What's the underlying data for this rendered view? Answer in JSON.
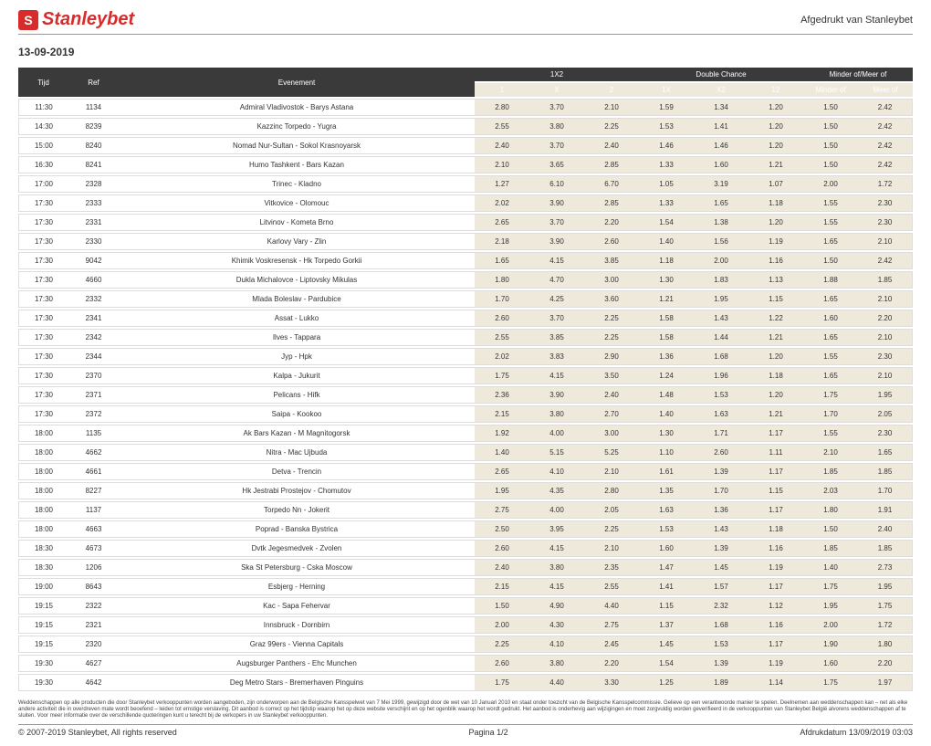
{
  "header": {
    "logo_letter": "S",
    "logo_text": "Stanleybet",
    "print_label": "Afgedrukt van Stanleybet"
  },
  "date": "13-09-2019",
  "table": {
    "headers": {
      "tijd": "Tijd",
      "ref": "Ref",
      "evenement": "Evenement",
      "group_1x2": "1X2",
      "group_dc": "Double Chance",
      "group_mm": "Minder of/Meer of",
      "h1": "1",
      "hx": "X",
      "h2": "2",
      "h1x": "1X",
      "hx2": "X2",
      "h12": "12",
      "hminder": "Minder of",
      "hmeer": "Meer of"
    },
    "rows": [
      {
        "tijd": "11:30",
        "ref": "1134",
        "ev": "Admiral Vladivostok - Barys Astana",
        "o": [
          "2.80",
          "3.70",
          "2.10",
          "1.59",
          "1.34",
          "1.20",
          "1.50",
          "2.42"
        ]
      },
      {
        "tijd": "14:30",
        "ref": "8239",
        "ev": "Kazzinc Torpedo - Yugra",
        "o": [
          "2.55",
          "3.80",
          "2.25",
          "1.53",
          "1.41",
          "1.20",
          "1.50",
          "2.42"
        ]
      },
      {
        "tijd": "15:00",
        "ref": "8240",
        "ev": "Nomad Nur-Sultan - Sokol Krasnoyarsk",
        "o": [
          "2.40",
          "3.70",
          "2.40",
          "1.46",
          "1.46",
          "1.20",
          "1.50",
          "2.42"
        ]
      },
      {
        "tijd": "16:30",
        "ref": "8241",
        "ev": "Humo Tashkent - Bars Kazan",
        "o": [
          "2.10",
          "3.65",
          "2.85",
          "1.33",
          "1.60",
          "1.21",
          "1.50",
          "2.42"
        ]
      },
      {
        "tijd": "17:00",
        "ref": "2328",
        "ev": "Trinec - Kladno",
        "o": [
          "1.27",
          "6.10",
          "6.70",
          "1.05",
          "3.19",
          "1.07",
          "2.00",
          "1.72"
        ]
      },
      {
        "tijd": "17:30",
        "ref": "2333",
        "ev": "Vitkovice - Olomouc",
        "o": [
          "2.02",
          "3.90",
          "2.85",
          "1.33",
          "1.65",
          "1.18",
          "1.55",
          "2.30"
        ]
      },
      {
        "tijd": "17:30",
        "ref": "2331",
        "ev": "Litvinov - Kometa Brno",
        "o": [
          "2.65",
          "3.70",
          "2.20",
          "1.54",
          "1.38",
          "1.20",
          "1.55",
          "2.30"
        ]
      },
      {
        "tijd": "17:30",
        "ref": "2330",
        "ev": "Karlovy Vary - Zlin",
        "o": [
          "2.18",
          "3.90",
          "2.60",
          "1.40",
          "1.56",
          "1.19",
          "1.65",
          "2.10"
        ]
      },
      {
        "tijd": "17:30",
        "ref": "9042",
        "ev": "Khimik Voskresensk - Hk Torpedo Gorkii",
        "o": [
          "1.65",
          "4.15",
          "3.85",
          "1.18",
          "2.00",
          "1.16",
          "1.50",
          "2.42"
        ]
      },
      {
        "tijd": "17:30",
        "ref": "4660",
        "ev": "Dukla Michalovce - Liptovsky Mikulas",
        "o": [
          "1.80",
          "4.70",
          "3.00",
          "1.30",
          "1.83",
          "1.13",
          "1.88",
          "1.85"
        ]
      },
      {
        "tijd": "17:30",
        "ref": "2332",
        "ev": "Mlada Boleslav - Pardubice",
        "o": [
          "1.70",
          "4.25",
          "3.60",
          "1.21",
          "1.95",
          "1.15",
          "1.65",
          "2.10"
        ]
      },
      {
        "tijd": "17:30",
        "ref": "2341",
        "ev": "Assat - Lukko",
        "o": [
          "2.60",
          "3.70",
          "2.25",
          "1.58",
          "1.43",
          "1.22",
          "1.60",
          "2.20"
        ]
      },
      {
        "tijd": "17:30",
        "ref": "2342",
        "ev": "Ilves - Tappara",
        "o": [
          "2.55",
          "3.85",
          "2.25",
          "1.58",
          "1.44",
          "1.21",
          "1.65",
          "2.10"
        ]
      },
      {
        "tijd": "17:30",
        "ref": "2344",
        "ev": "Jyp - Hpk",
        "o": [
          "2.02",
          "3.83",
          "2.90",
          "1.36",
          "1.68",
          "1.20",
          "1.55",
          "2.30"
        ]
      },
      {
        "tijd": "17:30",
        "ref": "2370",
        "ev": "Kalpa - Jukurit",
        "o": [
          "1.75",
          "4.15",
          "3.50",
          "1.24",
          "1.96",
          "1.18",
          "1.65",
          "2.10"
        ]
      },
      {
        "tijd": "17:30",
        "ref": "2371",
        "ev": "Pelicans - Hifk",
        "o": [
          "2.36",
          "3.90",
          "2.40",
          "1.48",
          "1.53",
          "1.20",
          "1.75",
          "1.95"
        ]
      },
      {
        "tijd": "17:30",
        "ref": "2372",
        "ev": "Saipa - Kookoo",
        "o": [
          "2.15",
          "3.80",
          "2.70",
          "1.40",
          "1.63",
          "1.21",
          "1.70",
          "2.05"
        ]
      },
      {
        "tijd": "18:00",
        "ref": "1135",
        "ev": "Ak Bars Kazan - M Magnitogorsk",
        "o": [
          "1.92",
          "4.00",
          "3.00",
          "1.30",
          "1.71",
          "1.17",
          "1.55",
          "2.30"
        ]
      },
      {
        "tijd": "18:00",
        "ref": "4662",
        "ev": "Nitra - Mac Ujbuda",
        "o": [
          "1.40",
          "5.15",
          "5.25",
          "1.10",
          "2.60",
          "1.11",
          "2.10",
          "1.65"
        ]
      },
      {
        "tijd": "18:00",
        "ref": "4661",
        "ev": "Detva - Trencin",
        "o": [
          "2.65",
          "4.10",
          "2.10",
          "1.61",
          "1.39",
          "1.17",
          "1.85",
          "1.85"
        ]
      },
      {
        "tijd": "18:00",
        "ref": "8227",
        "ev": "Hk Jestrabi Prostejov - Chomutov",
        "o": [
          "1.95",
          "4.35",
          "2.80",
          "1.35",
          "1.70",
          "1.15",
          "2.03",
          "1.70"
        ]
      },
      {
        "tijd": "18:00",
        "ref": "1137",
        "ev": "Torpedo Nn - Jokerit",
        "o": [
          "2.75",
          "4.00",
          "2.05",
          "1.63",
          "1.36",
          "1.17",
          "1.80",
          "1.91"
        ]
      },
      {
        "tijd": "18:00",
        "ref": "4663",
        "ev": "Poprad - Banska Bystrica",
        "o": [
          "2.50",
          "3.95",
          "2.25",
          "1.53",
          "1.43",
          "1.18",
          "1.50",
          "2.40"
        ]
      },
      {
        "tijd": "18:30",
        "ref": "4673",
        "ev": "Dvtk Jegesmedvek - Zvolen",
        "o": [
          "2.60",
          "4.15",
          "2.10",
          "1.60",
          "1.39",
          "1.16",
          "1.85",
          "1.85"
        ]
      },
      {
        "tijd": "18:30",
        "ref": "1206",
        "ev": "Ska St Petersburg - Cska Moscow",
        "o": [
          "2.40",
          "3.80",
          "2.35",
          "1.47",
          "1.45",
          "1.19",
          "1.40",
          "2.73"
        ]
      },
      {
        "tijd": "19:00",
        "ref": "8643",
        "ev": "Esbjerg - Herning",
        "o": [
          "2.15",
          "4.15",
          "2.55",
          "1.41",
          "1.57",
          "1.17",
          "1.75",
          "1.95"
        ]
      },
      {
        "tijd": "19:15",
        "ref": "2322",
        "ev": "Kac - Sapa Fehervar",
        "o": [
          "1.50",
          "4.90",
          "4.40",
          "1.15",
          "2.32",
          "1.12",
          "1.95",
          "1.75"
        ]
      },
      {
        "tijd": "19:15",
        "ref": "2321",
        "ev": "Innsbruck - Dornbirn",
        "o": [
          "2.00",
          "4.30",
          "2.75",
          "1.37",
          "1.68",
          "1.16",
          "2.00",
          "1.72"
        ]
      },
      {
        "tijd": "19:15",
        "ref": "2320",
        "ev": "Graz 99ers - Vienna Capitals",
        "o": [
          "2.25",
          "4.10",
          "2.45",
          "1.45",
          "1.53",
          "1.17",
          "1.90",
          "1.80"
        ]
      },
      {
        "tijd": "19:30",
        "ref": "4627",
        "ev": "Augsburger Panthers - Ehc Munchen",
        "o": [
          "2.60",
          "3.80",
          "2.20",
          "1.54",
          "1.39",
          "1.19",
          "1.60",
          "2.20"
        ]
      },
      {
        "tijd": "19:30",
        "ref": "4642",
        "ev": "Deg Metro Stars - Bremerhaven Pinguins",
        "o": [
          "1.75",
          "4.40",
          "3.30",
          "1.25",
          "1.89",
          "1.14",
          "1.75",
          "1.97"
        ]
      }
    ]
  },
  "disclaimer": "Weddenschappen op alle producten die door Stanleybet verkooppunten worden aangeboden, zijn onderworpen aan de Belgische Kansspelwet van 7 Mei 1999, gewijzigd door de wet van 10 Januari 2010 en staat onder toezicht van de Belgische Kansspelcommissie. Gelieve op een verantwoorde manier te spelen. Deelnemen aan weddenschappen kan – net als elke andere activiteit die in overdreven mate wordt beoefend – leiden tot ernstige verslaving. Dit aanbod is correct op het tijdstip waarop het op deze website verschijnt en op het ogenblik waarop het wordt gedrukt. Het aanbod is onderhevig aan wijzigingen en moet zorgvuldig worden geverifieerd in de verkooppunten van Stanleybet België alvorens weddenschappen af te sluiten. Voor meer informatie over de verschillende quoteringen kunt u terecht bij de verkopers in uw Stanleybet verkooppunten.",
  "footer": {
    "copyright": "© 2007-2019 Stanleybet, All rights reserved",
    "page": "Pagina 1/2",
    "printdate": "Afdrukdatum 13/09/2019 03:03"
  }
}
